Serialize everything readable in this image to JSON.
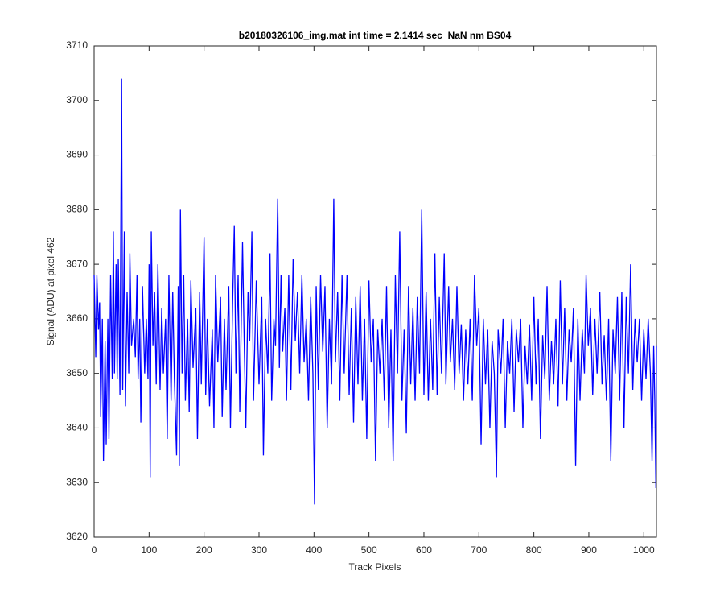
{
  "chart_data": {
    "type": "line",
    "title": "b20180326106_img.mat int time = 2.1414 sec  NaN nm BS04",
    "x_label": "Track Pixels",
    "y_label": "Signal (ADU) at pixel 462",
    "xlim": [
      0,
      1023
    ],
    "ylim": [
      3620,
      3710
    ],
    "xticks": [
      0,
      100,
      200,
      300,
      400,
      500,
      600,
      700,
      800,
      900,
      1000
    ],
    "yticks": [
      3620,
      3630,
      3640,
      3650,
      3660,
      3670,
      3680,
      3690,
      3700,
      3710
    ],
    "grid": false,
    "series": [
      {
        "color": "#0000ff",
        "x": [
          0,
          3,
          5,
          8,
          10,
          12,
          15,
          17,
          20,
          22,
          25,
          27,
          30,
          33,
          35,
          37,
          40,
          42,
          44,
          47,
          50,
          52,
          55,
          57,
          60,
          63,
          65,
          68,
          72,
          75,
          78,
          80,
          83,
          85,
          88,
          92,
          95,
          98,
          100,
          102,
          104,
          107,
          110,
          113,
          116,
          120,
          123,
          126,
          130,
          133,
          136,
          140,
          143,
          146,
          150,
          153,
          155,
          157,
          160,
          163,
          166,
          170,
          173,
          176,
          180,
          185,
          188,
          192,
          195,
          200,
          203,
          206,
          210,
          215,
          218,
          221,
          225,
          230,
          233,
          237,
          240,
          245,
          248,
          252,
          255,
          258,
          262,
          265,
          270,
          273,
          276,
          280,
          283,
          287,
          290,
          295,
          300,
          305,
          308,
          312,
          316,
          320,
          323,
          327,
          330,
          334,
          337,
          340,
          343,
          347,
          350,
          354,
          358,
          362,
          366,
          370,
          374,
          378,
          382,
          386,
          390,
          394,
          398,
          401,
          404,
          408,
          412,
          416,
          420,
          424,
          428,
          432,
          436,
          439,
          443,
          447,
          451,
          455,
          460,
          464,
          468,
          472,
          476,
          480,
          484,
          488,
          492,
          496,
          500,
          504,
          508,
          512,
          516,
          520,
          524,
          528,
          532,
          536,
          540,
          544,
          548,
          552,
          556,
          560,
          564,
          568,
          572,
          576,
          580,
          584,
          588,
          592,
          596,
          600,
          604,
          608,
          612,
          616,
          620,
          624,
          628,
          632,
          637,
          640,
          645,
          648,
          652,
          656,
          660,
          664,
          668,
          672,
          676,
          680,
          684,
          688,
          692,
          696,
          700,
          704,
          708,
          712,
          716,
          720,
          724,
          728,
          732,
          735,
          740,
          744,
          748,
          752,
          756,
          760,
          764,
          768,
          772,
          776,
          780,
          784,
          788,
          792,
          796,
          800,
          804,
          808,
          812,
          816,
          820,
          824,
          828,
          832,
          836,
          840,
          844,
          848,
          852,
          856,
          860,
          864,
          868,
          872,
          876,
          880,
          884,
          888,
          892,
          895,
          899,
          903,
          907,
          911,
          915,
          920,
          924,
          928,
          932,
          936,
          940,
          944,
          948,
          952,
          956,
          960,
          964,
          968,
          972,
          976,
          980,
          984,
          988,
          992,
          996,
          1000,
          1004,
          1008,
          1012,
          1015,
          1018,
          1020,
          1022,
          1023
        ],
        "values": [
          3668,
          3653,
          3668,
          3658,
          3663,
          3642,
          3660,
          3634,
          3656,
          3637,
          3660,
          3638,
          3668,
          3649,
          3676,
          3650,
          3670,
          3649,
          3671,
          3646,
          3704,
          3647,
          3676,
          3644,
          3665,
          3650,
          3672,
          3655,
          3660,
          3653,
          3668,
          3649,
          3660,
          3641,
          3666,
          3650,
          3660,
          3649,
          3670,
          3631,
          3676,
          3655,
          3665,
          3648,
          3670,
          3647,
          3662,
          3650,
          3660,
          3638,
          3668,
          3645,
          3665,
          3649,
          3635,
          3666,
          3633,
          3680,
          3650,
          3668,
          3645,
          3660,
          3643,
          3667,
          3651,
          3662,
          3638,
          3665,
          3648,
          3675,
          3646,
          3660,
          3644,
          3658,
          3640,
          3668,
          3652,
          3664,
          3642,
          3660,
          3647,
          3666,
          3640,
          3663,
          3677,
          3650,
          3668,
          3643,
          3674,
          3656,
          3640,
          3665,
          3656,
          3676,
          3645,
          3667,
          3648,
          3664,
          3635,
          3660,
          3650,
          3672,
          3645,
          3660,
          3655,
          3682,
          3651,
          3668,
          3654,
          3662,
          3645,
          3668,
          3647,
          3671,
          3656,
          3665,
          3650,
          3668,
          3652,
          3660,
          3645,
          3664,
          3650,
          3626,
          3666,
          3647,
          3668,
          3654,
          3666,
          3640,
          3660,
          3648,
          3682,
          3652,
          3665,
          3645,
          3668,
          3650,
          3668,
          3646,
          3662,
          3641,
          3664,
          3648,
          3666,
          3645,
          3660,
          3638,
          3667,
          3652,
          3660,
          3634,
          3658,
          3650,
          3660,
          3645,
          3666,
          3640,
          3658,
          3634,
          3668,
          3650,
          3676,
          3645,
          3658,
          3639,
          3666,
          3648,
          3662,
          3645,
          3664,
          3650,
          3680,
          3646,
          3665,
          3645,
          3660,
          3647,
          3672,
          3646,
          3664,
          3650,
          3672,
          3648,
          3666,
          3652,
          3660,
          3647,
          3666,
          3650,
          3659,
          3645,
          3658,
          3648,
          3660,
          3645,
          3668,
          3655,
          3662,
          3637,
          3660,
          3648,
          3658,
          3640,
          3656,
          3650,
          3631,
          3658,
          3650,
          3660,
          3640,
          3656,
          3650,
          3660,
          3643,
          3658,
          3652,
          3660,
          3640,
          3655,
          3648,
          3659,
          3645,
          3664,
          3648,
          3660,
          3638,
          3657,
          3649,
          3666,
          3645,
          3656,
          3648,
          3660,
          3644,
          3667,
          3648,
          3662,
          3645,
          3658,
          3652,
          3662,
          3633,
          3660,
          3645,
          3658,
          3650,
          3668,
          3655,
          3662,
          3646,
          3660,
          3650,
          3665,
          3648,
          3657,
          3645,
          3660,
          3634,
          3658,
          3650,
          3664,
          3645,
          3665,
          3640,
          3664,
          3650,
          3670,
          3647,
          3660,
          3652,
          3660,
          3645,
          3658,
          3649,
          3660,
          3650,
          3634,
          3655,
          3645,
          3629,
          3655
        ]
      }
    ]
  }
}
